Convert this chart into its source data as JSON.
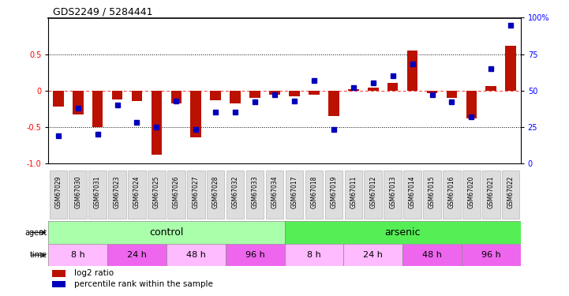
{
  "title": "GDS2249 / 5284441",
  "samples": [
    "GSM67029",
    "GSM67030",
    "GSM67031",
    "GSM67023",
    "GSM67024",
    "GSM67025",
    "GSM67026",
    "GSM67027",
    "GSM67028",
    "GSM67032",
    "GSM67033",
    "GSM67034",
    "GSM67017",
    "GSM67018",
    "GSM67019",
    "GSM67011",
    "GSM67012",
    "GSM67013",
    "GSM67014",
    "GSM67015",
    "GSM67016",
    "GSM67020",
    "GSM67021",
    "GSM67022"
  ],
  "log2_ratio": [
    -0.22,
    -0.33,
    -0.5,
    -0.12,
    -0.15,
    -0.88,
    -0.18,
    -0.65,
    -0.13,
    -0.18,
    -0.1,
    -0.06,
    -0.08,
    -0.06,
    -0.35,
    0.02,
    0.04,
    0.1,
    0.55,
    -0.04,
    -0.1,
    -0.38,
    0.06,
    0.62
  ],
  "percentile": [
    19,
    38,
    20,
    40,
    28,
    25,
    43,
    23,
    35,
    35,
    42,
    47,
    43,
    57,
    23,
    52,
    55,
    60,
    68,
    47,
    42,
    32,
    65,
    95
  ],
  "agent_groups": [
    {
      "label": "control",
      "start": 0,
      "end": 12,
      "color": "#aaffaa"
    },
    {
      "label": "arsenic",
      "start": 12,
      "end": 24,
      "color": "#55ee55"
    }
  ],
  "time_groups": [
    {
      "label": "8 h",
      "start": 0,
      "end": 3,
      "color": "#ffbbff"
    },
    {
      "label": "24 h",
      "start": 3,
      "end": 6,
      "color": "#ee66ee"
    },
    {
      "label": "48 h",
      "start": 6,
      "end": 9,
      "color": "#ffbbff"
    },
    {
      "label": "96 h",
      "start": 9,
      "end": 12,
      "color": "#ee66ee"
    },
    {
      "label": "8 h",
      "start": 12,
      "end": 15,
      "color": "#ffbbff"
    },
    {
      "label": "24 h",
      "start": 15,
      "end": 18,
      "color": "#ffbbff"
    },
    {
      "label": "48 h",
      "start": 18,
      "end": 21,
      "color": "#ee66ee"
    },
    {
      "label": "96 h",
      "start": 21,
      "end": 24,
      "color": "#ee66ee"
    }
  ],
  "bar_color": "#bb1100",
  "dot_color": "#0000bb",
  "ylim": [
    -1.0,
    1.0
  ],
  "yticks_left": [
    -1.0,
    -0.5,
    0.0,
    0.5
  ],
  "bar_width": 0.55,
  "dot_size": 18,
  "background_color": "#ffffff",
  "label_fontsize": 5.5,
  "agent_fontsize": 9,
  "time_fontsize": 8
}
